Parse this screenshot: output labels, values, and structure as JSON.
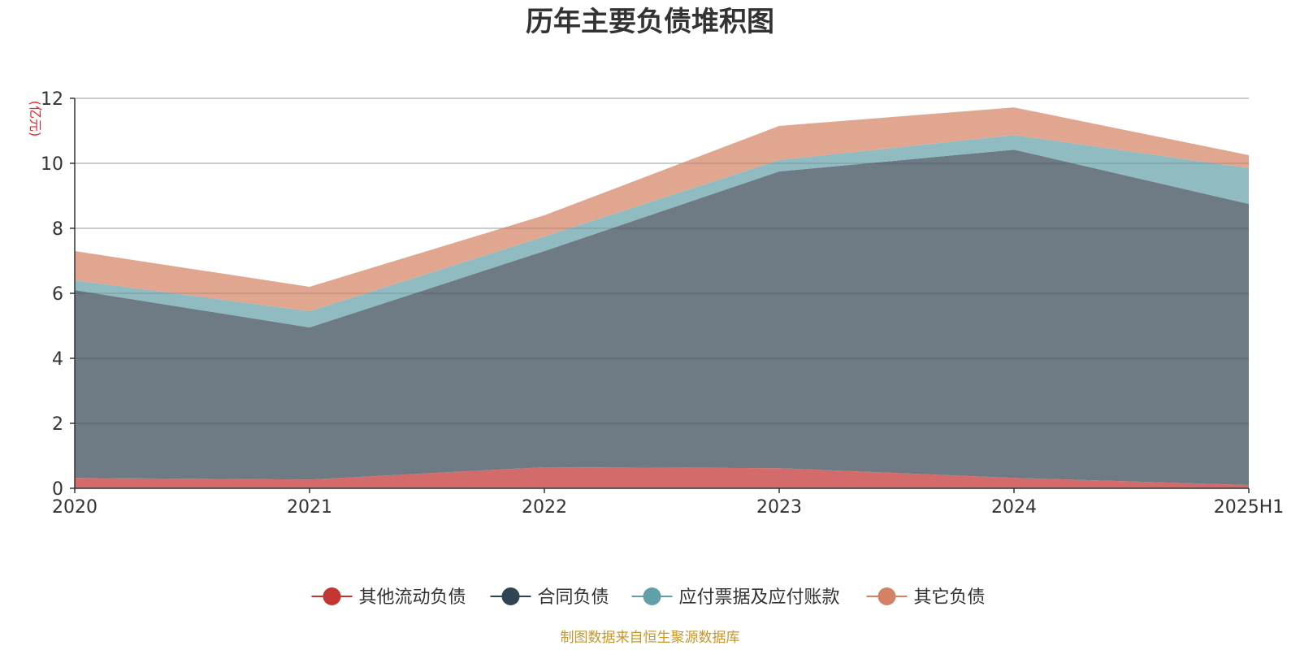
{
  "chart_data": {
    "type": "area",
    "stacked": true,
    "title": "历年主要负债堆积图",
    "unit_label": "(亿元)",
    "source_note": "制图数据来自恒生聚源数据库",
    "categories": [
      "2020",
      "2021",
      "2022",
      "2023",
      "2024",
      "2025H1"
    ],
    "ylim": [
      0,
      12
    ],
    "yticks": [
      0,
      2,
      4,
      6,
      8,
      10,
      12
    ],
    "grid": true,
    "legend_position": "bottom",
    "series": [
      {
        "name": "其他流动负债",
        "color": "#c23531",
        "fill": "#d46b6b",
        "values": [
          0.32,
          0.27,
          0.65,
          0.62,
          0.32,
          0.1
        ]
      },
      {
        "name": "合同负债",
        "color": "#2f4554",
        "fill": "#6e7b85",
        "values": [
          5.78,
          4.68,
          6.65,
          9.13,
          10.1,
          8.65
        ]
      },
      {
        "name": "应付票据及应付账款",
        "color": "#61a0a8",
        "fill": "#8fbbc1",
        "values": [
          0.3,
          0.5,
          0.45,
          0.35,
          0.45,
          1.1
        ]
      },
      {
        "name": "其它负债",
        "color": "#d48265",
        "fill": "#e0a68f",
        "values": [
          0.9,
          0.75,
          0.65,
          1.05,
          0.85,
          0.4
        ]
      }
    ]
  }
}
